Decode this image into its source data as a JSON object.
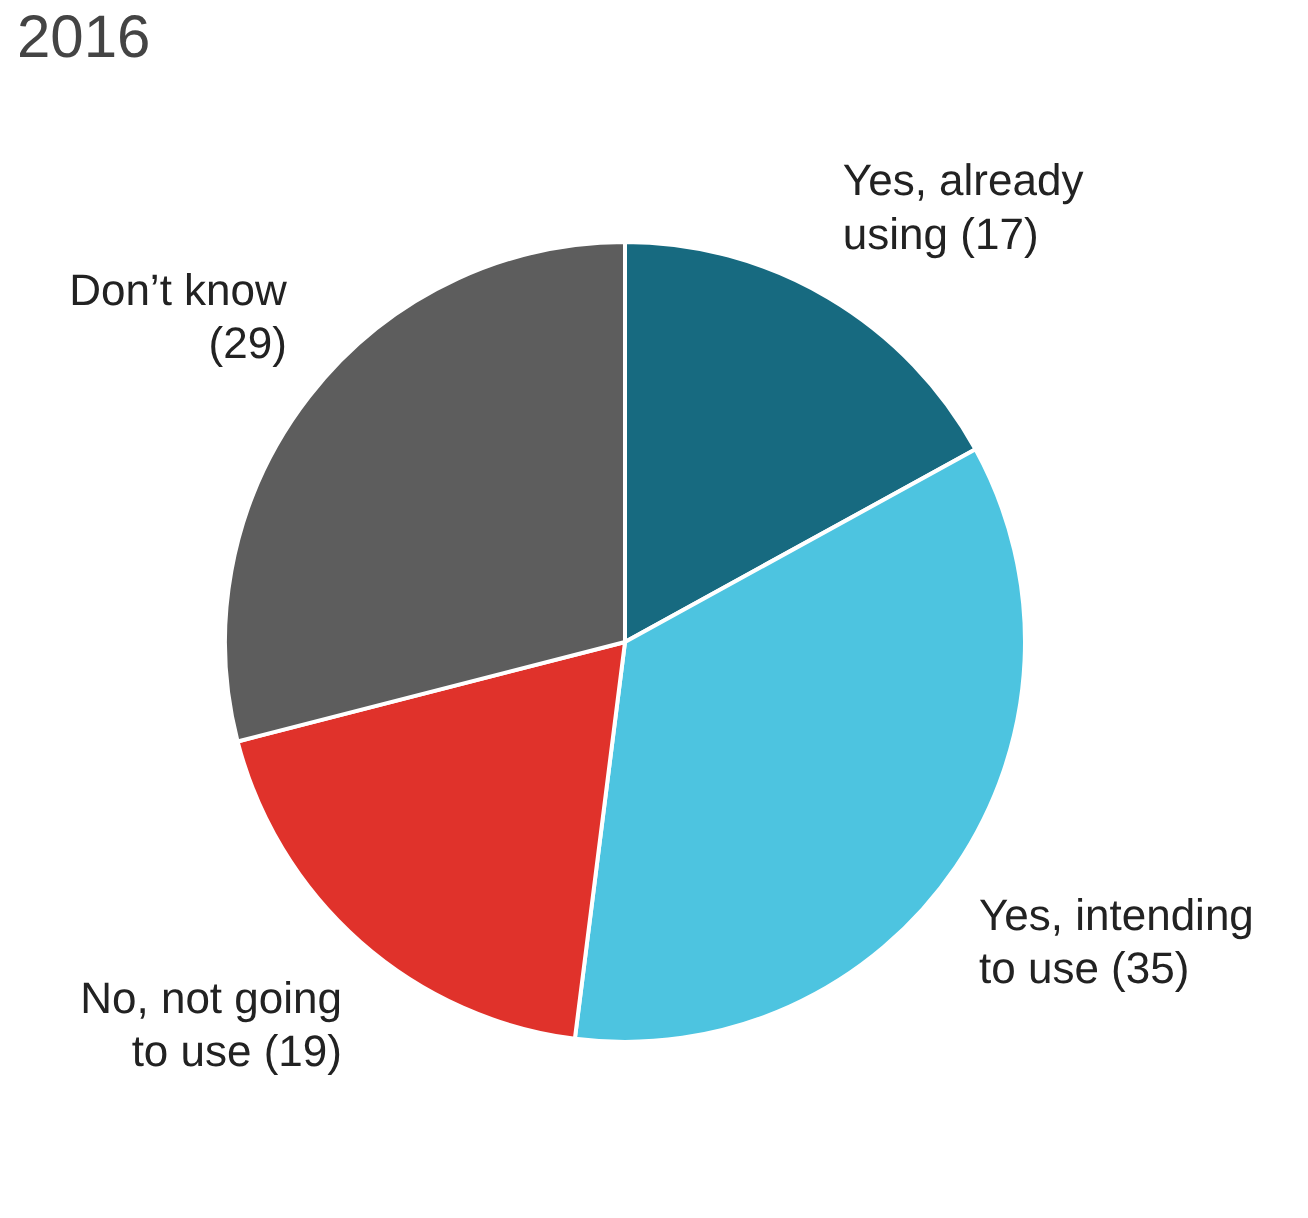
{
  "chart_data": {
    "type": "pie",
    "title": "2016",
    "categories": [
      "Yes, already using",
      "Yes, intending to use",
      "No, not going to use",
      "Don’t know"
    ],
    "values": [
      17,
      35,
      19,
      29
    ],
    "value_labels": [
      "(17)",
      "(35)",
      "(19)",
      "(29)"
    ],
    "colors": [
      "#176a80",
      "#4dc4e0",
      "#e0322b",
      "#5d5d5d"
    ],
    "legend": false
  }
}
